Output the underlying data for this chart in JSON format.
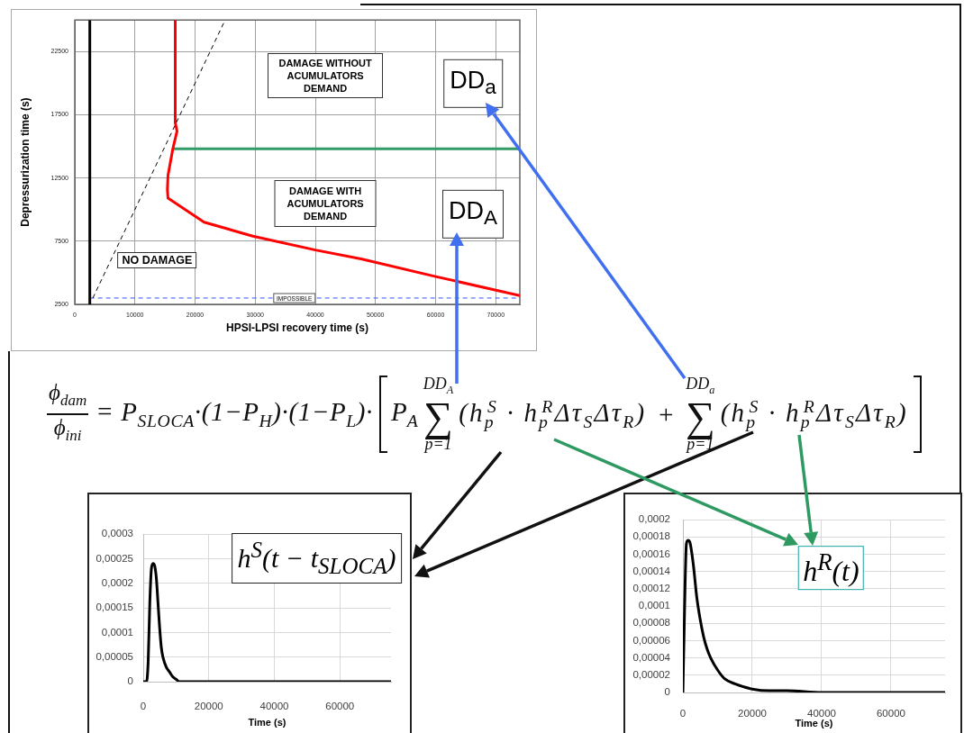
{
  "chart_data": [
    {
      "type": "line",
      "xlabel": "HPSI-LPSI recovery time (s)",
      "ylabel": "Depressurization time (s)",
      "xlim": [
        0,
        74000
      ],
      "xticks": [
        0,
        10000,
        20000,
        30000,
        40000,
        50000,
        60000,
        70000
      ],
      "ylim": [
        2500,
        25000
      ],
      "yticks": [
        2500,
        7500,
        12500,
        17500,
        22500
      ],
      "grid": true,
      "series": [
        {
          "color": "#000000",
          "x": [
            2500,
            2500
          ],
          "values": [
            2500,
            25000
          ]
        },
        {
          "color": "#000000",
          "x": [
            3000,
            25000
          ],
          "values": [
            3000,
            25000
          ],
          "line_style": "dashed"
        },
        {
          "color": "#ff0000",
          "x": [
            16700,
            16700,
            17000,
            16300,
            15500,
            15400,
            15500,
            21500,
            29600,
            40000,
            47600,
            60000,
            74000
          ],
          "values": [
            25000,
            16900,
            16200,
            14800,
            12700,
            11600,
            10900,
            9000,
            7900,
            6800,
            6100,
            4700,
            3200
          ]
        },
        {
          "color": "#339966",
          "x": [
            16300,
            74000
          ],
          "values": [
            14800,
            14800
          ]
        },
        {
          "color": "#3355ff",
          "x": [
            2500,
            74000
          ],
          "values": [
            3000,
            3000
          ],
          "line_style": "dashed"
        }
      ],
      "annotations": [
        "DAMAGE WITHOUT ACUMULATORS DEMAND",
        "DAMAGE WITH ACUMULATORS DEMAND",
        "NO DAMAGE",
        {
          "text": "IMPOSSIBLE",
          "x": 36500,
          "y": 3000
        },
        "DD$_{a}$",
        "DD$_{A}$"
      ]
    },
    {
      "type": "other",
      "annotations": [
        "ϕ$_{dam}$",
        "ϕ$_{ini}$",
        "= P$_{SLOCA}$·(1−P$_{H}$)·(1−P$_{L}$)·",
        "P$_{A}$",
        "DD$_{A}$",
        "∑",
        "p=1",
        "(h$_{p}$$^{S}$ · h$_{p}$$^{R}$Δτ$_{S}$Δτ$_{R}$)",
        "+",
        "DD$_{a}$",
        "∑",
        "p=1",
        "(h$_{p}$$^{S}$ · h$_{p}$$^{R}$Δτ$_{S}$Δτ$_{R}$)"
      ]
    },
    {
      "type": "line",
      "xlabel": "Time (s)",
      "xlim": [
        0,
        75600
      ],
      "xticks": [
        0,
        20000,
        40000,
        60000
      ],
      "ylim": [
        0,
        0.0003
      ],
      "yticks": [
        0,
        {
          "value": 5e-05,
          "label": "0,00005"
        },
        {
          "value": 0.0001,
          "label": "0,0001"
        },
        {
          "value": 0.00015,
          "label": "0,00015"
        },
        {
          "value": 0.0002,
          "label": "0,0002"
        },
        {
          "value": 0.00025,
          "label": "0,00025"
        },
        {
          "value": 0.0003,
          "label": "0,0003"
        }
      ],
      "grid": true,
      "color": "#000000",
      "x": [
        0,
        1000,
        1500,
        2000,
        2500,
        3000,
        3500,
        4000,
        4500,
        5000,
        5500,
        6000,
        7000,
        8000,
        9000,
        10000,
        11000,
        12000,
        75600
      ],
      "values": [
        0,
        0,
        4e-05,
        0.00016,
        0.00023,
        0.00024,
        0.000235,
        0.00021,
        0.00016,
        0.00011,
        7e-05,
        5e-05,
        3e-05,
        2e-05,
        1e-05,
        5e-06,
        0,
        0,
        0
      ],
      "annotations": [
        "h$^{S}$(t − t$_{SLOCA}$)"
      ]
    },
    {
      "type": "line",
      "xlabel": "Time (s)",
      "xlim": [
        0,
        75600
      ],
      "xticks": [
        0,
        20000,
        40000,
        60000
      ],
      "ylim": [
        0,
        0.0002
      ],
      "yticks": [
        0,
        {
          "value": 2e-05,
          "label": "0,00002"
        },
        {
          "value": 4e-05,
          "label": "0,00004"
        },
        {
          "value": 6e-05,
          "label": "0,00006"
        },
        {
          "value": 8e-05,
          "label": "0,00008"
        },
        {
          "value": 0.0001,
          "label": "0,0001"
        },
        {
          "value": 0.00012,
          "label": "0,00012"
        },
        {
          "value": 0.00014,
          "label": "0,00014"
        },
        {
          "value": 0.00016,
          "label": "0,00016"
        },
        {
          "value": 0.00018,
          "label": "0,00018"
        },
        {
          "value": 0.0002,
          "label": "0,0002"
        }
      ],
      "grid": true,
      "color": "#000000",
      "x": [
        0,
        500,
        1000,
        1500,
        2000,
        3000,
        4000,
        5000,
        6000,
        7000,
        8000,
        10000,
        12000,
        15000,
        20000,
        25000,
        30000,
        40000,
        75600
      ],
      "values": [
        0,
        0.0001,
        0.000172,
        0.000176,
        0.000174,
        0.000148,
        0.00011,
        8.4e-05,
        6.4e-05,
        5e-05,
        4e-05,
        2.6e-05,
        1.6e-05,
        1e-05,
        4e-06,
        2e-06,
        2e-06,
        0,
        0
      ],
      "annotations": [
        "h$^{R}$(t)"
      ]
    }
  ]
}
